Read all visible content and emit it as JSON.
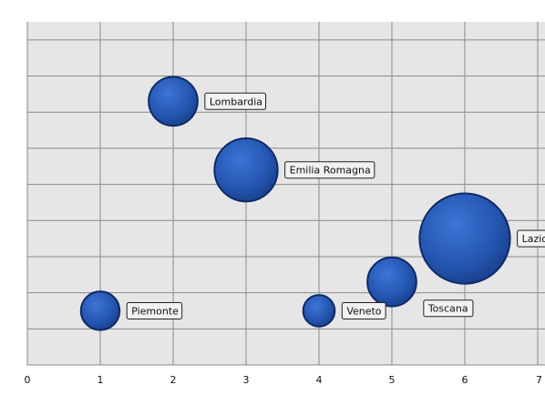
{
  "chart_data": {
    "type": "scatter",
    "variant": "bubble",
    "title": "",
    "xlabel": "",
    "ylabel": "",
    "xlim": [
      0,
      7
    ],
    "ylim": [
      0,
      9.5
    ],
    "x_ticks": [
      "0",
      "1",
      "2",
      "3",
      "4",
      "5",
      "6",
      "7"
    ],
    "grid": true,
    "legend": "none",
    "colors": {
      "plot_bg": "#e6e6e6",
      "grid": "#8a8a8a",
      "bubble": "#2456b0",
      "bubble_edge": "#0f2a66",
      "label_bg": "#f2f2f2",
      "label_border": "#222222"
    },
    "series": [
      {
        "points": [
          {
            "label": "Lombardia",
            "x": 2,
            "y": 7.3,
            "size": 1.2
          },
          {
            "label": "Emilia Romagna",
            "x": 3,
            "y": 5.4,
            "size": 2.0
          },
          {
            "label": "Lazio",
            "x": 6,
            "y": 3.5,
            "size": 4.1
          },
          {
            "label": "Toscana",
            "x": 5,
            "y": 2.3,
            "size": 1.2
          },
          {
            "label": "Piemonte",
            "x": 1,
            "y": 1.5,
            "size": 0.75
          },
          {
            "label": "Veneto",
            "x": 4,
            "y": 1.5,
            "size": 0.5
          }
        ]
      }
    ]
  }
}
